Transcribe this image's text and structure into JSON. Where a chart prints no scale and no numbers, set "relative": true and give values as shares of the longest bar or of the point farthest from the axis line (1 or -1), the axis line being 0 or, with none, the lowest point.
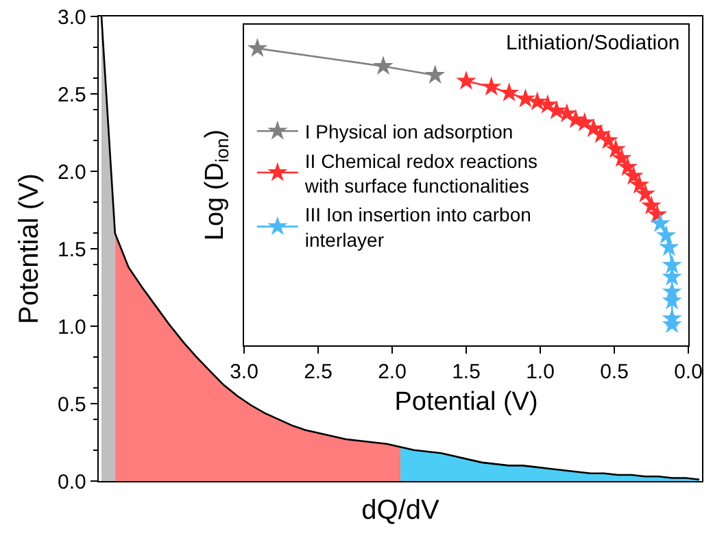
{
  "chart_data": [
    {
      "type": "area",
      "xlabel": "dQ/dV",
      "ylabel": "Potential (V)",
      "categories": [
        null,
        null,
        null,
        null,
        null,
        null,
        null,
        null,
        null,
        null,
        null,
        null,
        null,
        null,
        null,
        null,
        null,
        null,
        null,
        null,
        null,
        null,
        null,
        null,
        null,
        null,
        null,
        null,
        null,
        null,
        null,
        null,
        null,
        null,
        null,
        null,
        null,
        null,
        null,
        null,
        null,
        null,
        null,
        null,
        null
      ],
      "series": [
        {
          "color": "#bfbfbf",
          "values": [
            3.0,
            1.6,
            null,
            null,
            null,
            null,
            null,
            null,
            null,
            null,
            null,
            null,
            null,
            null,
            null,
            null,
            null,
            null,
            null,
            null,
            null,
            null,
            null,
            null,
            null,
            null,
            null,
            null,
            null,
            null,
            null,
            null,
            null,
            null,
            null,
            null,
            null,
            null,
            null,
            null,
            null,
            null,
            null,
            null,
            null
          ]
        },
        {
          "color": "#ff7c7c",
          "values": [
            null,
            1.6,
            1.38,
            1.25,
            1.13,
            1.01,
            0.9,
            0.8,
            0.71,
            0.62,
            0.55,
            0.49,
            0.44,
            0.4,
            0.36,
            0.33,
            0.31,
            0.29,
            0.27,
            0.26,
            0.25,
            0.24,
            0.22,
            null,
            null,
            null,
            null,
            null,
            null,
            null,
            null,
            null,
            null,
            null,
            null,
            null,
            null,
            null,
            null,
            null,
            null,
            null,
            null,
            null,
            null
          ]
        },
        {
          "color": "#4ccdf5",
          "values": [
            null,
            null,
            null,
            null,
            null,
            null,
            null,
            null,
            null,
            null,
            null,
            null,
            null,
            null,
            null,
            null,
            null,
            null,
            null,
            null,
            null,
            null,
            0.22,
            0.2,
            0.19,
            0.18,
            0.16,
            0.14,
            0.12,
            0.11,
            0.1,
            0.1,
            0.09,
            0.08,
            0.07,
            0.06,
            0.05,
            0.05,
            0.04,
            0.04,
            0.03,
            0.03,
            0.02,
            0.02,
            0.01
          ]
        },
        {
          "type": "line",
          "color": "#000000",
          "values": [
            3.0,
            1.6,
            1.38,
            1.25,
            1.13,
            1.01,
            0.9,
            0.8,
            0.71,
            0.62,
            0.55,
            0.49,
            0.44,
            0.4,
            0.36,
            0.33,
            0.31,
            0.29,
            0.27,
            0.26,
            0.25,
            0.24,
            0.22,
            0.2,
            0.19,
            0.18,
            0.16,
            0.14,
            0.12,
            0.11,
            0.1,
            0.1,
            0.09,
            0.08,
            0.07,
            0.06,
            0.05,
            0.05,
            0.04,
            0.04,
            0.03,
            0.03,
            0.02,
            0.02,
            0.01
          ]
        }
      ],
      "ylim": [
        0,
        3
      ],
      "yticks": [
        {
          "value": 0,
          "label": "0.0"
        },
        {
          "value": 0.5,
          "label": "0.5"
        },
        {
          "value": 1,
          "label": "1.0"
        },
        {
          "value": 1.5,
          "label": "1.5"
        },
        {
          "value": 2,
          "label": "2.0"
        },
        {
          "value": 2.5,
          "label": "2.5"
        },
        {
          "value": 3,
          "label": "3.0"
        }
      ]
    },
    {
      "type": "line",
      "marker": "star",
      "line_style": "solid",
      "relative": true,
      "legend": "left",
      "xlabel": "Potential (V)",
      "ylabel": "Log (D$_{ion}$)",
      "annotations": [
        "Lithiation/Sodiation"
      ],
      "xlim": [
        3,
        0
      ],
      "xticks": [
        {
          "value": 3,
          "label": "3.0"
        },
        {
          "value": 2.5,
          "label": "2.5"
        },
        {
          "value": 2,
          "label": "2.0"
        },
        {
          "value": 1.5,
          "label": "1.5"
        },
        {
          "value": 1,
          "label": "1.0"
        },
        {
          "value": 0.5,
          "label": "0.5"
        },
        {
          "value": 0,
          "label": "0.0"
        }
      ],
      "series": [
        {
          "name": "I Physical ion adsorption",
          "color": "#808080",
          "x": [
            2.91,
            2.06,
            1.71
          ],
          "values": [
            1.0,
            0.94,
            0.91
          ]
        },
        {
          "name": "II Chemical redox reactions with surface functionalities",
          "color": "#ff3030",
          "x": [
            1.5,
            1.33,
            1.21,
            1.1,
            1.02,
            0.95,
            0.89,
            0.82,
            0.76,
            0.7,
            0.64,
            0.59,
            0.54,
            0.49,
            0.45,
            0.41,
            0.37,
            0.33,
            0.29,
            0.25,
            0.21
          ],
          "values": [
            0.89,
            0.87,
            0.85,
            0.83,
            0.82,
            0.81,
            0.79,
            0.78,
            0.76,
            0.75,
            0.73,
            0.71,
            0.69,
            0.66,
            0.63,
            0.6,
            0.57,
            0.54,
            0.51,
            0.47,
            0.44
          ]
        },
        {
          "name": "III Ion insertion into carbon interlayer",
          "color": "#4cb8f5",
          "x": [
            0.19,
            0.15,
            0.13,
            0.11,
            0.11,
            0.11,
            0.11,
            0.11,
            0.11
          ],
          "values": [
            0.41,
            0.37,
            0.33,
            0.27,
            0.23,
            0.18,
            0.15,
            0.09,
            0.07
          ]
        }
      ]
    }
  ]
}
